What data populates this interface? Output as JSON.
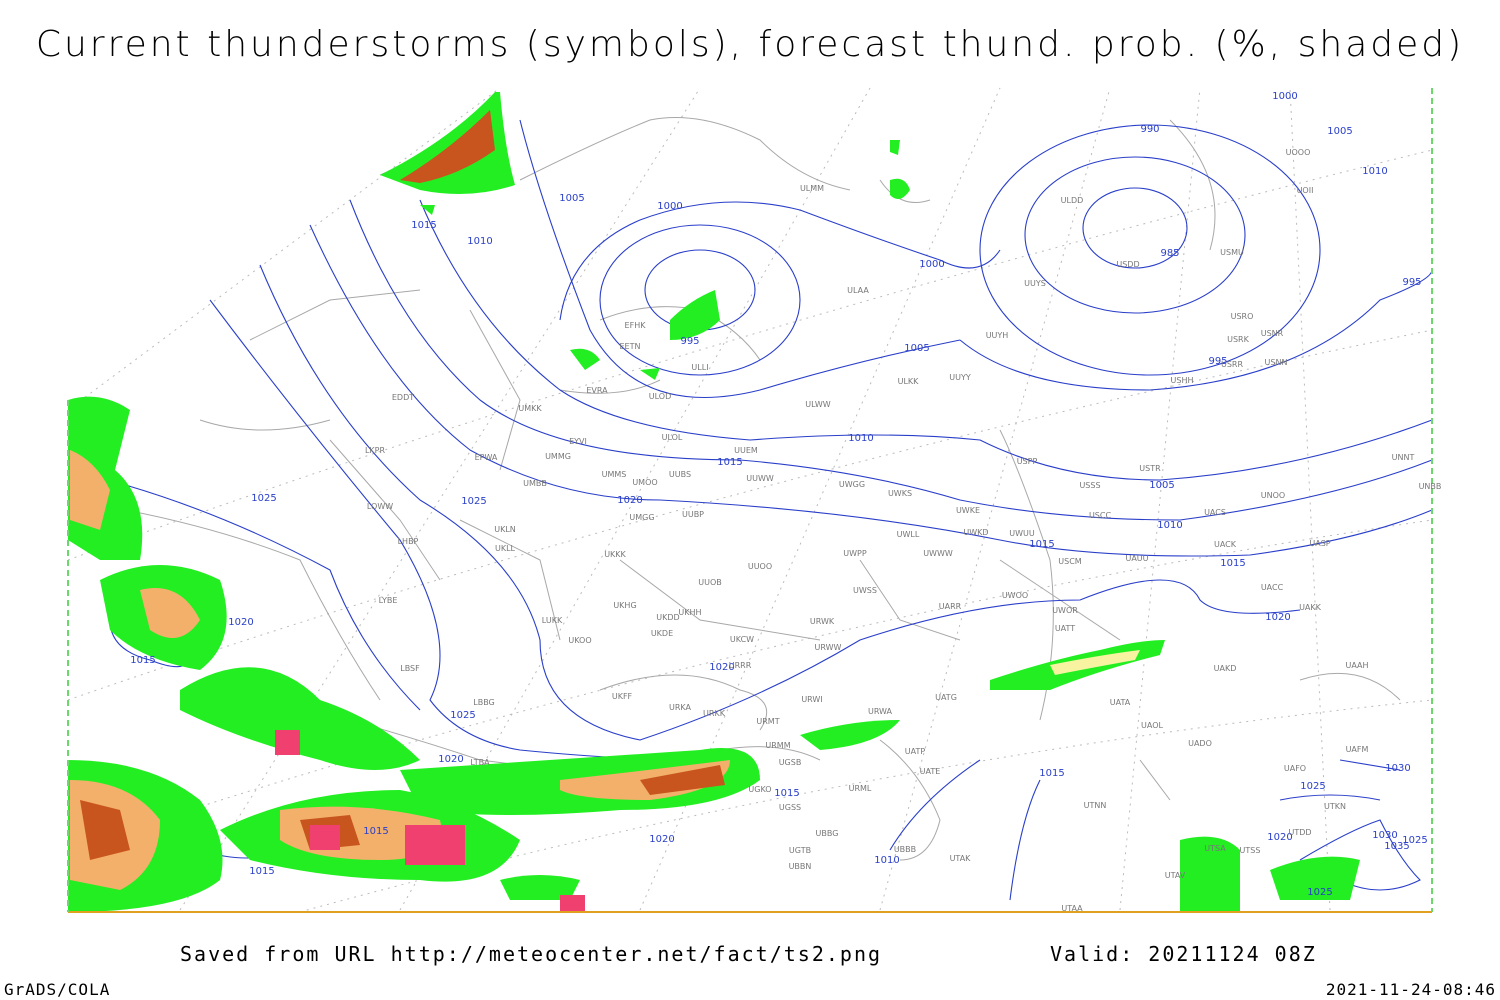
{
  "header": {
    "title": "Current thunderstorms (symbols), forecast thund. prob. (%, shaded)"
  },
  "isobar_labels": [
    1000,
    1005,
    1010,
    995,
    990,
    985,
    995,
    1005,
    1000,
    1015,
    1010,
    1000,
    995,
    1005,
    1010,
    1015,
    1025,
    1020,
    1025,
    1005,
    1010,
    1015,
    1015,
    1020,
    1020,
    1015,
    1020,
    1025,
    1020,
    1015,
    1015,
    1020,
    1010,
    1015,
    1015,
    1025,
    1030,
    1030,
    1035,
    1025,
    1020,
    1025
  ],
  "stations": [
    "ULMM",
    "ULAA",
    "EFHK",
    "EETN",
    "ULLI",
    "ULOD",
    "EVRA",
    "UMKK",
    "EYVI",
    "ULOL",
    "UUEM",
    "UMMG",
    "EPWA",
    "LKPR",
    "UMMS",
    "UMOO",
    "UUBS",
    "UUWW",
    "UMBB",
    "EDDT",
    "ULKK",
    "UUYY",
    "ULWW",
    "UWGG",
    "UWKS",
    "UWKE",
    "UWKD",
    "UWUU",
    "USPP",
    "USSS",
    "USTR",
    "USCC",
    "ULDD",
    "USDD",
    "USMU",
    "UUYS",
    "UUYH",
    "USRO",
    "USRK",
    "USNR",
    "USRR",
    "USNN",
    "USHH",
    "UOOO",
    "UOII",
    "UNNT",
    "UNBB",
    "UNOO",
    "UACS",
    "UACK",
    "UASP",
    "UACC",
    "UAKK",
    "UAAH",
    "UAKD",
    "UATA",
    "UAOL",
    "UADO",
    "UATT",
    "UWOR",
    "UWOO",
    "USCM",
    "UAUU",
    "UWWW",
    "UWPP",
    "UWLL",
    "UWSS",
    "UARR",
    "URWW",
    "URWK",
    "UUOO",
    "UUOB",
    "UKKK",
    "UMGG",
    "UUBP",
    "UKLL",
    "UKLN",
    "LOWW",
    "LHBP",
    "LYBE",
    "LUKK",
    "UKOO",
    "UKHH",
    "UKDD",
    "UKHG",
    "UKDE",
    "UKCW",
    "URRR",
    "UKFF",
    "URKA",
    "URKK",
    "URMT",
    "URWI",
    "UATG",
    "URWA",
    "UATP",
    "UATE",
    "URMM",
    "UGSB",
    "UGKO",
    "UGSS",
    "UBBG",
    "UGTB",
    "UBBN",
    "UBBB",
    "UTAK",
    "URML",
    "UTNN",
    "UTAA",
    "UTSA",
    "UTSS",
    "UTAV",
    "LBSF",
    "LBBG",
    "LTBA",
    "UAFM",
    "UAFO",
    "UTKN",
    "UTDD"
  ],
  "footer": {
    "source": "Saved from URL http://meteocenter.net/fact/ts2.png",
    "valid": "Valid: 20211124 08Z",
    "software": "GrADS/COLA",
    "timestamp": "2021-11-24-08:46"
  }
}
